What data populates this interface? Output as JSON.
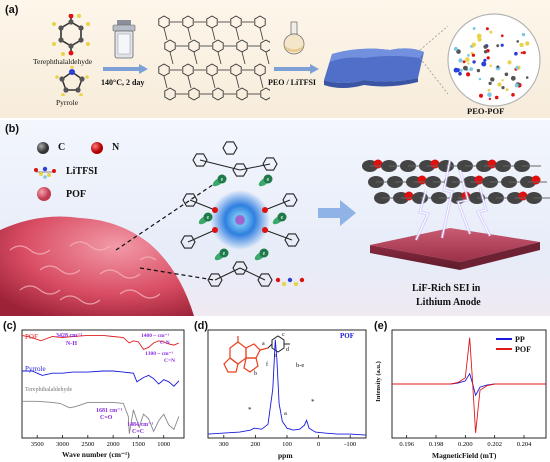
{
  "panel_a": {
    "label": "(a)",
    "reagent_1": "Terephthalaldehyde",
    "reagent_2": "Pyrrole",
    "condition": "140°C, 2 day",
    "step2": "PEO / LiTFSI",
    "product": "PEO-POF"
  },
  "panel_b": {
    "label": "(b)",
    "legend": [
      {
        "symbol": "C",
        "label": "C",
        "color": "#555555"
      },
      {
        "symbol": "N",
        "label": "N",
        "color": "#e01010"
      },
      {
        "symbol": "LiTFSI",
        "label": "LiTFSI",
        "color": ""
      },
      {
        "symbol": "POF",
        "label": "POF",
        "color": "#e45a6e"
      }
    ],
    "electron_label": "e",
    "caption_line1": "LiF-Rich SEI in",
    "caption_line2": "Lithium Anode"
  },
  "panel_c": {
    "label": "(c)",
    "series_labels": [
      "POF",
      "Pyrrole",
      "Terephthalaldehyde"
    ],
    "annotations": [
      "3428 cm⁻¹",
      "N-H",
      "1400 ~ cm⁻¹",
      "C-N",
      "1300 ~ cm⁻¹",
      "C=N",
      "1681 cm⁻¹",
      "C=O",
      "1484 cm⁻¹",
      "C=C"
    ],
    "xlabel": "Wave number (cm⁻¹)",
    "xticks": [
      "3500",
      "3000",
      "2500",
      "2000",
      "1500",
      "1000"
    ]
  },
  "panel_d": {
    "label": "(d)",
    "series_label": "POF",
    "xlabel": "ppm",
    "xticks": [
      "300",
      "200",
      "100",
      "0",
      "-100"
    ],
    "peak_labels": [
      "b-e",
      "a",
      "*",
      "*"
    ],
    "structure_labels": [
      "a",
      "b",
      "c",
      "d",
      "e",
      "f"
    ]
  },
  "panel_e": {
    "label": "(e)",
    "ylabel": "Intensity (a.u.)",
    "xlabel": "MagneticField (mT)",
    "xticks": [
      "0.196",
      "0.198",
      "0.200",
      "0.202",
      "0.204"
    ],
    "legend": [
      {
        "name": "PP",
        "color": "#1a1adc"
      },
      {
        "name": "POF",
        "color": "#e01818"
      }
    ]
  },
  "chart_data": [
    {
      "type": "line",
      "title": "",
      "xlabel": "Wave number (cm⁻¹)",
      "ylabel": "",
      "xlim": [
        3800,
        600
      ],
      "series": [
        {
          "name": "POF",
          "color": "#e02020",
          "x": [
            3800,
            3600,
            3428,
            3200,
            3000,
            2800,
            2500,
            2200,
            2000,
            1800,
            1681,
            1600,
            1500,
            1400,
            1300,
            1200,
            1100,
            1000,
            900,
            800,
            700
          ],
          "values": [
            0.95,
            0.93,
            0.9,
            0.94,
            0.93,
            0.94,
            0.95,
            0.95,
            0.94,
            0.93,
            0.88,
            0.9,
            0.89,
            0.82,
            0.84,
            0.88,
            0.9,
            0.89,
            0.87,
            0.86,
            0.88
          ]
        },
        {
          "name": "Pyrrole",
          "color": "#1a1adc",
          "x": [
            3800,
            3600,
            3400,
            3200,
            3000,
            2800,
            2500,
            2200,
            2000,
            1800,
            1600,
            1530,
            1400,
            1300,
            1200,
            1100,
            1000,
            900,
            800,
            700
          ],
          "values": [
            0.62,
            0.62,
            0.58,
            0.6,
            0.6,
            0.61,
            0.61,
            0.62,
            0.62,
            0.61,
            0.6,
            0.52,
            0.56,
            0.58,
            0.55,
            0.5,
            0.54,
            0.52,
            0.48,
            0.53
          ]
        },
        {
          "name": "Terephthalaldehyde",
          "color": "#888888",
          "x": [
            3800,
            3500,
            3200,
            3050,
            2860,
            2750,
            2500,
            2200,
            2000,
            1800,
            1700,
            1681,
            1600,
            1484,
            1400,
            1300,
            1200,
            1100,
            1000,
            900,
            800,
            700
          ],
          "values": [
            0.34,
            0.34,
            0.33,
            0.32,
            0.28,
            0.29,
            0.33,
            0.33,
            0.33,
            0.32,
            0.2,
            0.04,
            0.26,
            0.1,
            0.22,
            0.18,
            0.06,
            0.16,
            0.22,
            0.12,
            0.08,
            0.2
          ]
        }
      ]
    },
    {
      "type": "line",
      "title": "",
      "xlabel": "ppm",
      "ylabel": "",
      "xlim": [
        350,
        -150
      ],
      "series": [
        {
          "name": "POF",
          "color": "#1a1adc",
          "x": [
            350,
            300,
            250,
            215,
            205,
            180,
            160,
            145,
            137,
            132,
            125,
            115,
            100,
            80,
            60,
            45,
            38,
            30,
            10,
            -20,
            -60,
            -100,
            -150
          ],
          "values": [
            0.04,
            0.05,
            0.06,
            0.08,
            0.1,
            0.09,
            0.14,
            0.5,
            1.0,
            0.8,
            0.35,
            0.17,
            0.1,
            0.08,
            0.09,
            0.13,
            0.18,
            0.1,
            0.06,
            0.05,
            0.04,
            0.04,
            0.03
          ]
        }
      ]
    },
    {
      "type": "line",
      "title": "",
      "xlabel": "MagneticField (mT)",
      "ylabel": "Intensity (a.u.)",
      "xlim": [
        0.195,
        0.2055
      ],
      "series": [
        {
          "name": "PP",
          "color": "#1a1adc",
          "x": [
            0.195,
            0.199,
            0.1995,
            0.2,
            0.2003,
            0.2005,
            0.2007,
            0.201,
            0.2015,
            0.202,
            0.2055
          ],
          "values": [
            0.0,
            0.0,
            0.02,
            0.06,
            0.2,
            0.0,
            -0.22,
            -0.06,
            -0.02,
            0.0,
            0.0
          ]
        },
        {
          "name": "POF",
          "color": "#e01818",
          "x": [
            0.195,
            0.199,
            0.1995,
            0.2,
            0.2003,
            0.2005,
            0.2007,
            0.201,
            0.2015,
            0.202,
            0.2055
          ],
          "values": [
            0.0,
            0.0,
            0.03,
            0.12,
            0.9,
            0.0,
            -0.95,
            -0.12,
            -0.03,
            0.0,
            0.0
          ]
        }
      ]
    }
  ]
}
